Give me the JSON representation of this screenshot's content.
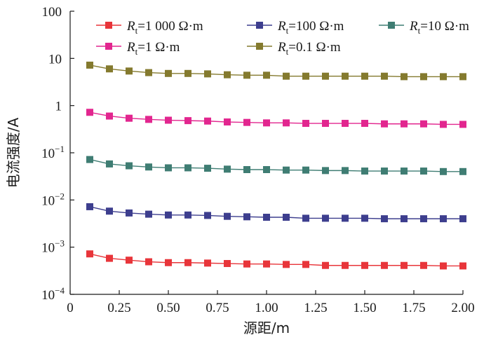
{
  "chart_data": {
    "type": "line",
    "xlabel": "源距/m",
    "ylabel": "电流强度/A",
    "x": [
      0.1,
      0.2,
      0.3,
      0.4,
      0.5,
      0.6,
      0.7,
      0.8,
      0.9,
      1.0,
      1.1,
      1.2,
      1.3,
      1.4,
      1.5,
      1.6,
      1.7,
      1.8,
      1.9,
      2.0
    ],
    "xlim": [
      0,
      2.0
    ],
    "ylim": [
      0.0001,
      100
    ],
    "yscale": "log",
    "x_tick_labels": [
      "0",
      "0.25",
      "0.50",
      "0.75",
      "1.00",
      "1.25",
      "1.50",
      "1.75",
      "2.00"
    ],
    "y_tick_labels": [
      {
        "base": "100",
        "exp": ""
      },
      {
        "base": "10",
        "exp": ""
      },
      {
        "base": "1",
        "exp": ""
      },
      {
        "base": "10",
        "exp": "−1"
      },
      {
        "base": "10",
        "exp": "−2"
      },
      {
        "base": "10",
        "exp": "−3"
      },
      {
        "base": "10",
        "exp": "−4"
      }
    ],
    "legend_position": "top",
    "grid": false,
    "series": [
      {
        "label_main": "R",
        "label_sub": "t",
        "label_rest": "=1 000 Ω·m",
        "color": "#e8353a",
        "values": [
          0.00072,
          0.00058,
          0.00053,
          0.00049,
          0.00047,
          0.00047,
          0.00046,
          0.00045,
          0.00044,
          0.00044,
          0.00043,
          0.00043,
          0.00041,
          0.00041,
          0.00041,
          0.00041,
          0.00041,
          0.00041,
          0.0004,
          0.0004
        ]
      },
      {
        "label_main": "R",
        "label_sub": "t",
        "label_rest": "=100 Ω·m",
        "color": "#3d3e8e",
        "values": [
          0.0072,
          0.0058,
          0.0053,
          0.005,
          0.0048,
          0.0048,
          0.0047,
          0.0045,
          0.0044,
          0.0043,
          0.0043,
          0.0041,
          0.0041,
          0.0041,
          0.0041,
          0.004,
          0.004,
          0.004,
          0.004,
          0.004
        ]
      },
      {
        "label_main": "R",
        "label_sub": "t",
        "label_rest": "=10 Ω·m",
        "color": "#3f7d73",
        "values": [
          0.072,
          0.058,
          0.053,
          0.05,
          0.048,
          0.048,
          0.047,
          0.045,
          0.044,
          0.044,
          0.043,
          0.043,
          0.042,
          0.042,
          0.041,
          0.041,
          0.041,
          0.041,
          0.04,
          0.04
        ]
      },
      {
        "label_main": "R",
        "label_sub": "t",
        "label_rest": "=1 Ω·m",
        "color": "#e2268f",
        "values": [
          0.72,
          0.6,
          0.54,
          0.51,
          0.49,
          0.48,
          0.47,
          0.45,
          0.44,
          0.43,
          0.43,
          0.42,
          0.42,
          0.42,
          0.42,
          0.41,
          0.41,
          0.41,
          0.4,
          0.4
        ]
      },
      {
        "label_main": "R",
        "label_sub": "t",
        "label_rest": "=0.1 Ω·m",
        "color": "#847a2e",
        "values": [
          7.2,
          6.0,
          5.4,
          5.0,
          4.8,
          4.8,
          4.7,
          4.5,
          4.4,
          4.4,
          4.2,
          4.2,
          4.2,
          4.2,
          4.2,
          4.2,
          4.1,
          4.1,
          4.1,
          4.1
        ]
      }
    ]
  }
}
